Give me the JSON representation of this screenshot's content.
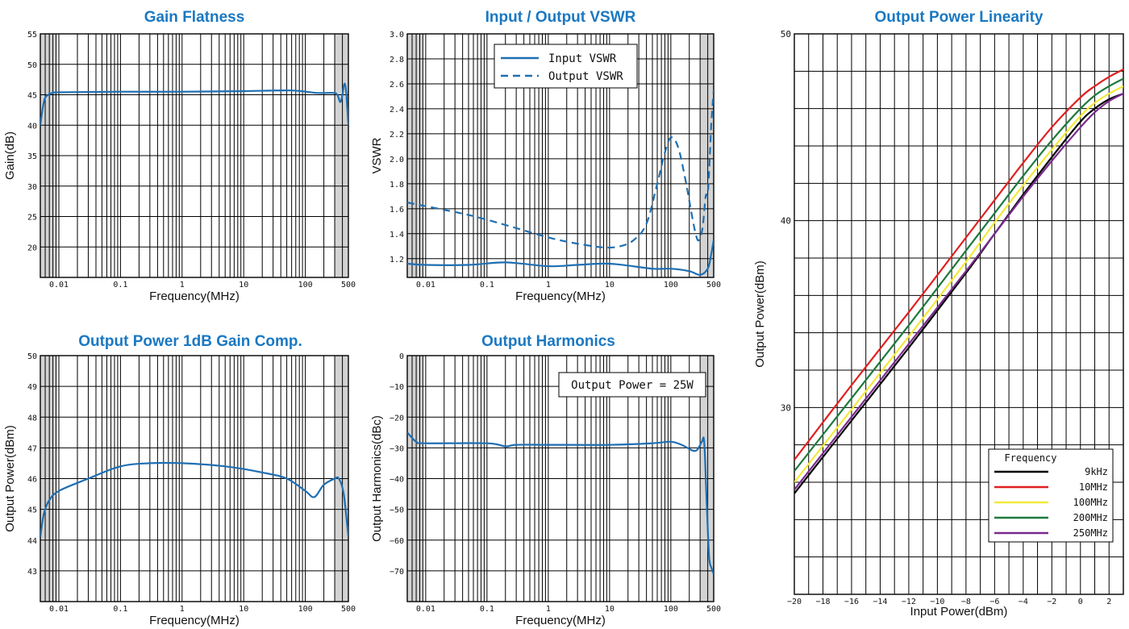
{
  "colors": {
    "title": "#1a78c2",
    "curve": "#1f6fb3",
    "band": "#d3d3d3",
    "grid": "#000000"
  },
  "chart_data": [
    {
      "id": "gain",
      "type": "line",
      "title": "Gain Flatness",
      "xlabel": "Frequency(MHz)",
      "ylabel": "Gain(dB)",
      "xscale": "log",
      "xlim": [
        0.005,
        500
      ],
      "ylim": [
        15,
        55
      ],
      "yticks": [
        20,
        25,
        30,
        35,
        40,
        45,
        50,
        55
      ],
      "ytick_labels": [
        "20",
        "25",
        "30",
        "35",
        "40",
        "45",
        "50",
        "55"
      ],
      "xticks": [
        0.01,
        0.1,
        1,
        10,
        100,
        500
      ],
      "xtick_labels": [
        "0.01",
        "0.1",
        "1",
        "10",
        "100",
        "500"
      ],
      "shaded_bands": [
        [
          0.005,
          0.009
        ],
        [
          300,
          500
        ]
      ],
      "series": [
        {
          "style": "solid",
          "x": [
            0.005,
            0.0055,
            0.006,
            0.007,
            0.008,
            0.01,
            0.1,
            1,
            10,
            60,
            150,
            280,
            330,
            370,
            400,
            430,
            460,
            500
          ],
          "y": [
            40,
            43,
            44.5,
            45.1,
            45.3,
            45.4,
            45.5,
            45.5,
            45.6,
            45.7,
            45.3,
            45.3,
            45.0,
            43.8,
            45.0,
            46.8,
            45.5,
            40
          ]
        }
      ]
    },
    {
      "id": "vswr",
      "type": "line",
      "title": "Input / Output VSWR",
      "xlabel": "Frequency(MHz)",
      "ylabel": "VSWR",
      "xscale": "log",
      "xlim": [
        0.005,
        500
      ],
      "ylim": [
        1.05,
        3.0
      ],
      "yticks": [
        1.2,
        1.4,
        1.6,
        1.8,
        2.0,
        2.2,
        2.4,
        2.6,
        2.8,
        3.0
      ],
      "ytick_labels": [
        "1.2",
        "1.4",
        "1.6",
        "1.8",
        "2.0",
        "2.2",
        "2.4",
        "2.6",
        "2.8",
        "3.0"
      ],
      "xticks": [
        0.01,
        0.1,
        1,
        10,
        100,
        500
      ],
      "xtick_labels": [
        "0.01",
        "0.1",
        "1",
        "10",
        "100",
        "500"
      ],
      "shaded_bands": [
        [
          0.005,
          0.009
        ],
        [
          300,
          500
        ]
      ],
      "legend_position": "top-center",
      "series": [
        {
          "name": "Input VSWR",
          "style": "solid",
          "x": [
            0.005,
            0.01,
            0.05,
            0.2,
            1,
            3,
            10,
            50,
            100,
            200,
            300,
            400,
            450,
            500
          ],
          "y": [
            1.16,
            1.15,
            1.15,
            1.17,
            1.14,
            1.15,
            1.16,
            1.12,
            1.12,
            1.1,
            1.07,
            1.12,
            1.22,
            1.35
          ]
        },
        {
          "name": "Output VSWR",
          "style": "dashed",
          "x": [
            0.005,
            0.01,
            0.05,
            0.2,
            1,
            3,
            8,
            15,
            25,
            40,
            60,
            80,
            100,
            130,
            170,
            220,
            260,
            290,
            330,
            370,
            400,
            430,
            460,
            500
          ],
          "y": [
            1.65,
            1.62,
            1.55,
            1.47,
            1.37,
            1.32,
            1.29,
            1.3,
            1.35,
            1.48,
            1.8,
            2.05,
            2.17,
            2.1,
            1.85,
            1.55,
            1.38,
            1.35,
            1.45,
            1.7,
            1.72,
            2.0,
            2.3,
            2.55
          ]
        }
      ]
    },
    {
      "id": "p1db",
      "type": "line",
      "title": "Output Power 1dB Gain Comp.",
      "xlabel": "Frequency(MHz)",
      "ylabel": "Output Power(dBm)",
      "xscale": "log",
      "xlim": [
        0.005,
        500
      ],
      "ylim": [
        42,
        50
      ],
      "yticks": [
        43,
        44,
        45,
        46,
        47,
        48,
        49,
        50
      ],
      "ytick_labels": [
        "43",
        "44",
        "45",
        "46",
        "47",
        "48",
        "49",
        "50"
      ],
      "xticks": [
        0.01,
        0.1,
        1,
        10,
        100,
        500
      ],
      "xtick_labels": [
        "0.01",
        "0.1",
        "1",
        "10",
        "100",
        "500"
      ],
      "shaded_bands": [
        [
          0.005,
          0.009
        ],
        [
          300,
          500
        ]
      ],
      "series": [
        {
          "style": "solid",
          "x": [
            0.005,
            0.0055,
            0.006,
            0.007,
            0.01,
            0.03,
            0.1,
            0.3,
            1,
            5,
            20,
            50,
            100,
            140,
            200,
            300,
            350,
            420,
            500
          ],
          "y": [
            44.1,
            44.7,
            45.0,
            45.3,
            45.6,
            46.0,
            46.4,
            46.5,
            46.5,
            46.4,
            46.2,
            46.0,
            45.6,
            45.4,
            45.8,
            46.0,
            46.0,
            45.5,
            44.1
          ]
        }
      ]
    },
    {
      "id": "harm",
      "type": "line",
      "title": "Output Harmonics",
      "xlabel": "Frequency(MHz)",
      "ylabel": "Output Harmonics(dBc)",
      "xscale": "log",
      "xlim": [
        0.005,
        500
      ],
      "ylim": [
        -80,
        0
      ],
      "yticks": [
        0,
        -10,
        -20,
        -30,
        -40,
        -50,
        -60,
        -70
      ],
      "ytick_labels": [
        "0",
        "−10",
        "−20",
        "−30",
        "−40",
        "−50",
        "−60",
        "−70"
      ],
      "xticks": [
        0.01,
        0.1,
        1,
        10,
        100,
        500
      ],
      "xtick_labels": [
        "0.01",
        "0.1",
        "1",
        "10",
        "100",
        "500"
      ],
      "shaded_bands": [
        [
          0.005,
          0.009
        ],
        [
          300,
          500
        ]
      ],
      "annotation": "Output Power = 25W",
      "series": [
        {
          "style": "solid",
          "x": [
            0.005,
            0.007,
            0.01,
            0.1,
            0.2,
            0.3,
            1,
            10,
            50,
            100,
            150,
            250,
            320,
            350,
            380,
            420,
            460,
            500
          ],
          "y": [
            -25,
            -28,
            -28.5,
            -28.5,
            -29.5,
            -29,
            -29,
            -29,
            -28.5,
            -28,
            -29,
            -31,
            -28,
            -28,
            -45,
            -65,
            -69,
            -71
          ]
        }
      ]
    },
    {
      "id": "linearity",
      "type": "line",
      "title": "Output Power Linearity",
      "xlabel": "Input Power(dBm)",
      "ylabel": "Output Power(dBm)",
      "xscale": "linear",
      "xlim": [
        -20,
        3
      ],
      "ylim": [
        20,
        50
      ],
      "yticks": [
        30,
        40,
        50
      ],
      "ytick_labels": [
        "30",
        "40",
        "50"
      ],
      "xticks": [
        -20,
        -18,
        -16,
        -14,
        -12,
        -10,
        -8,
        -6,
        -4,
        -2,
        0,
        2
      ],
      "xtick_labels": [
        "−20",
        "−18",
        "−16",
        "−14",
        "−12",
        "−10",
        "−8",
        "−6",
        "−4",
        "−2",
        "0",
        "2"
      ],
      "legend_title": "Frequency",
      "legend_position": "bottom-right",
      "series": [
        {
          "name": "9kHz",
          "color": "#000000",
          "x": [
            -20,
            -16,
            -12,
            -8,
            -6,
            -4,
            -2,
            0,
            1,
            2,
            3
          ],
          "y": [
            25.4,
            29.3,
            33.2,
            37.2,
            39.3,
            41.4,
            43.4,
            45.3,
            46.0,
            46.5,
            46.8
          ]
        },
        {
          "name": "10MHz",
          "color": "#e02020",
          "x": [
            -20,
            -16,
            -12,
            -8,
            -6,
            -4,
            -2,
            0,
            1,
            2,
            3
          ],
          "y": [
            27.2,
            31.2,
            35.1,
            39.1,
            41.1,
            43.1,
            45.0,
            46.6,
            47.2,
            47.7,
            48.1
          ]
        },
        {
          "name": "100MHz",
          "color": "#f2ea3a",
          "x": [
            -20,
            -16,
            -12,
            -8,
            -6,
            -4,
            -2,
            0,
            1,
            2,
            3
          ],
          "y": [
            26.0,
            29.9,
            33.8,
            37.8,
            39.9,
            41.9,
            43.8,
            45.6,
            46.3,
            46.8,
            47.2
          ]
        },
        {
          "name": "200MHz",
          "color": "#1e7a3e",
          "x": [
            -20,
            -16,
            -12,
            -8,
            -6,
            -4,
            -2,
            0,
            1,
            2,
            3
          ],
          "y": [
            26.6,
            30.5,
            34.4,
            38.4,
            40.4,
            42.4,
            44.3,
            46.0,
            46.7,
            47.2,
            47.6
          ]
        },
        {
          "name": "250MHz",
          "color": "#7a2a8e",
          "x": [
            -20,
            -16,
            -12,
            -8,
            -6,
            -4,
            -2,
            0,
            1,
            2,
            3
          ],
          "y": [
            25.6,
            29.5,
            33.4,
            37.3,
            39.3,
            41.3,
            43.2,
            45.0,
            45.8,
            46.4,
            46.8
          ]
        }
      ]
    }
  ]
}
